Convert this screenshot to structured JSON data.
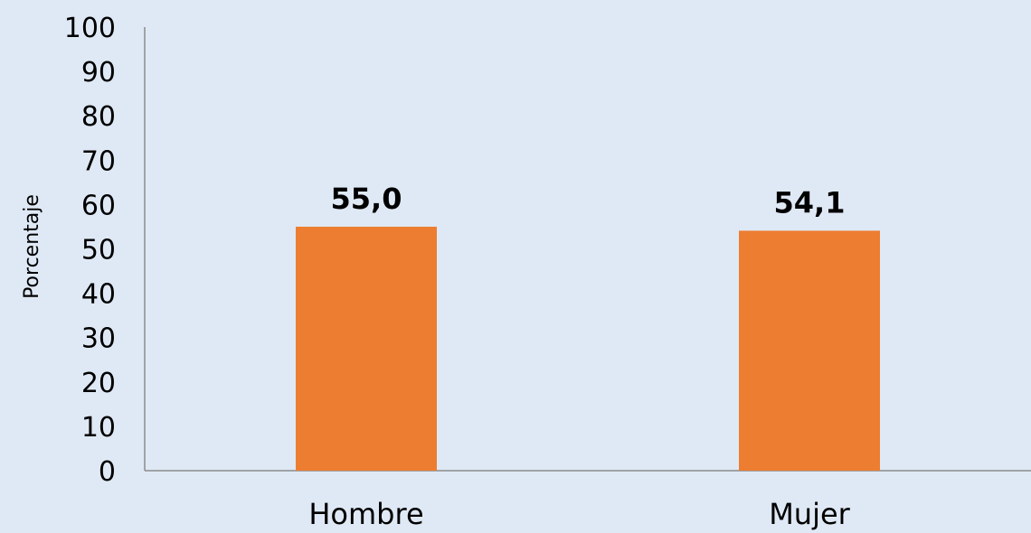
{
  "chart_data": {
    "type": "bar",
    "categories": [
      "Hombre",
      "Mujer"
    ],
    "values": [
      55.0,
      54.1
    ],
    "value_labels": [
      "55,0",
      "54,1"
    ],
    "title": "",
    "xlabel": "",
    "ylabel": "Porcentaje",
    "ylim": [
      0,
      100
    ],
    "y_ticks": [
      0,
      10,
      20,
      30,
      40,
      50,
      60,
      70,
      80,
      90,
      100
    ],
    "grid": false,
    "legend": "none",
    "colors": {
      "bar": "#ed7d31",
      "background": "#dfe9f5",
      "axis": "#8c8c8c"
    }
  }
}
